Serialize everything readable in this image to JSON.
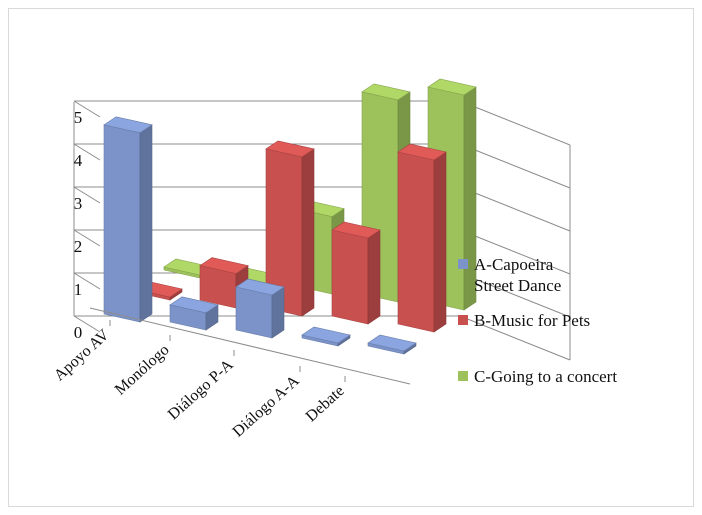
{
  "chart_data": {
    "type": "bar",
    "subtype": "3d-clustered-column",
    "title": "",
    "xlabel": "",
    "ylabel": "",
    "categories": [
      "Apoyo AV",
      "Monólogo",
      "Diálogo P-A",
      "Diálogo A-A",
      "Debate"
    ],
    "series": [
      {
        "name": "A-Capoeira-Street Dance",
        "color": "#7b93c8",
        "values": [
          4.4,
          0.4,
          1.0,
          0,
          0
        ]
      },
      {
        "name": "B-Music for Pets",
        "color": "#c8504e",
        "values": [
          0,
          0.8,
          3.7,
          2.0,
          4.0
        ]
      },
      {
        "name": "C-Going to a concert",
        "color": "#9dc15b",
        "values": [
          0,
          0,
          1.8,
          4.7,
          5.0
        ]
      }
    ],
    "y_ticks": [
      "0",
      "1",
      "2",
      "3",
      "4",
      "5"
    ],
    "ylim": [
      0,
      5
    ],
    "grid": true,
    "legend_position": "right"
  }
}
